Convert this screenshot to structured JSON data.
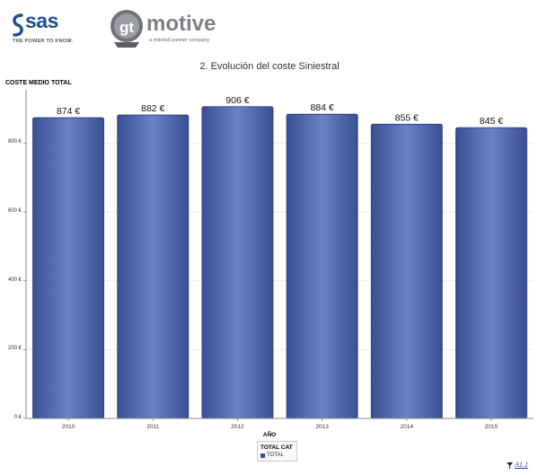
{
  "logos": {
    "sas_name": "SAS",
    "sas_wordmark": "sas",
    "sas_tagline": "THE POWER TO KNOW.",
    "gt_badge": "gt",
    "gt_wordmark": "motive",
    "gt_tagline": "a mitchell partner company"
  },
  "footer": {
    "filter_icon": "filter-icon",
    "reference": "A1.1"
  },
  "colors": {
    "bar": "#3a4f94",
    "bar_highlight": "#6a82c4",
    "axis": "#888888",
    "grid": "#eeeeee"
  },
  "chart_data": {
    "type": "bar",
    "title": "2. Evolución del coste Siniestral",
    "xlabel": "AÑO",
    "ylabel": "COSTE MEDIO TOTAL",
    "categories": [
      "2010",
      "2011",
      "2012",
      "2013",
      "2014",
      "2015"
    ],
    "series": [
      {
        "name": "TOTAL",
        "values": [
          874,
          882,
          906,
          884,
          855,
          845
        ],
        "labels": [
          "874 €",
          "882 €",
          "906 €",
          "884 €",
          "855 €",
          "845 €"
        ]
      }
    ],
    "legend_title": "TOTAL CAT",
    "legend_position": "bottom-center",
    "yticks": [
      0,
      200,
      400,
      600,
      800
    ],
    "ytick_labels": [
      "0 €",
      "200 €",
      "400 €",
      "600 €",
      "800 €"
    ],
    "ylim": [
      0,
      955
    ],
    "grid": true
  }
}
